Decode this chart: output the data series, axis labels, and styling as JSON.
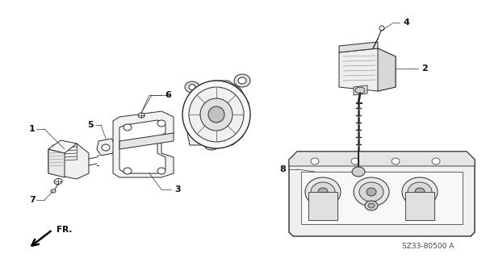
{
  "background_color": "#ffffff",
  "line_color": "#2a2a2a",
  "part_code": "SZ33-80500 A",
  "part_labels": [
    "1",
    "2",
    "3",
    "4",
    "5",
    "6",
    "7",
    "8"
  ],
  "figsize": [
    6.02,
    3.2
  ],
  "dpi": 100
}
